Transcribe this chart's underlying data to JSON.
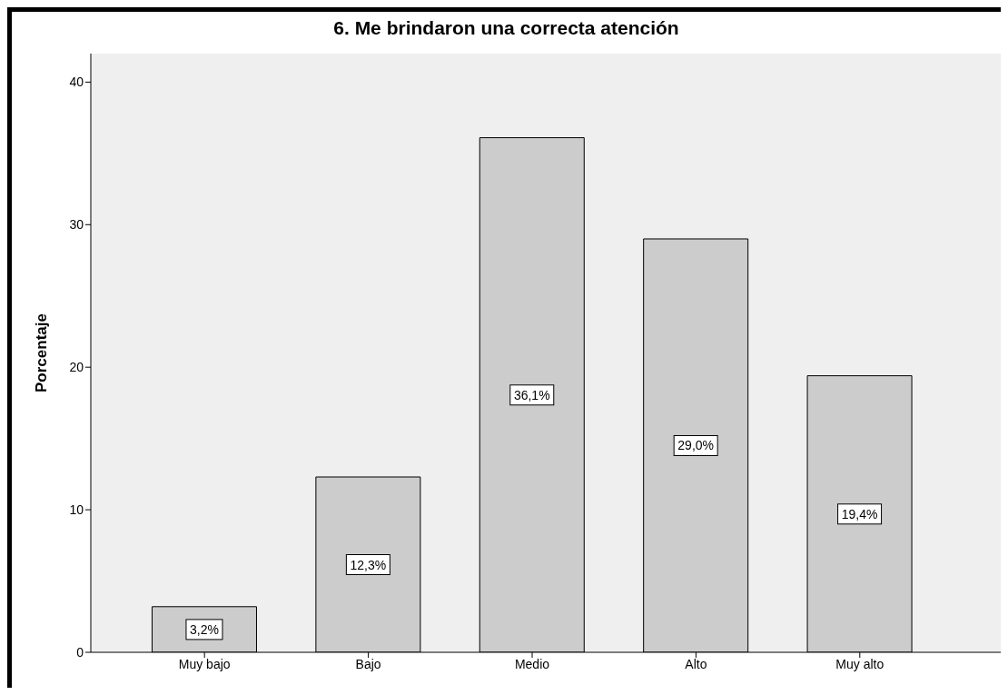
{
  "chart_data": {
    "type": "bar",
    "title": "6. Me brindaron una correcta atención",
    "ylabel": "Porcentaje",
    "categories": [
      "Muy bajo",
      "Bajo",
      "Medio",
      "Alto",
      "Muy alto"
    ],
    "values": [
      3.2,
      12.3,
      36.1,
      29.0,
      19.4
    ],
    "value_labels": [
      "3,2%",
      "12,3%",
      "36,1%",
      "29,0%",
      "19,4%"
    ],
    "color": "#cccccc",
    "ylim": [
      0,
      42
    ],
    "yticks": [
      0,
      10,
      20,
      30,
      40
    ],
    "grid": false,
    "legend": false
  }
}
